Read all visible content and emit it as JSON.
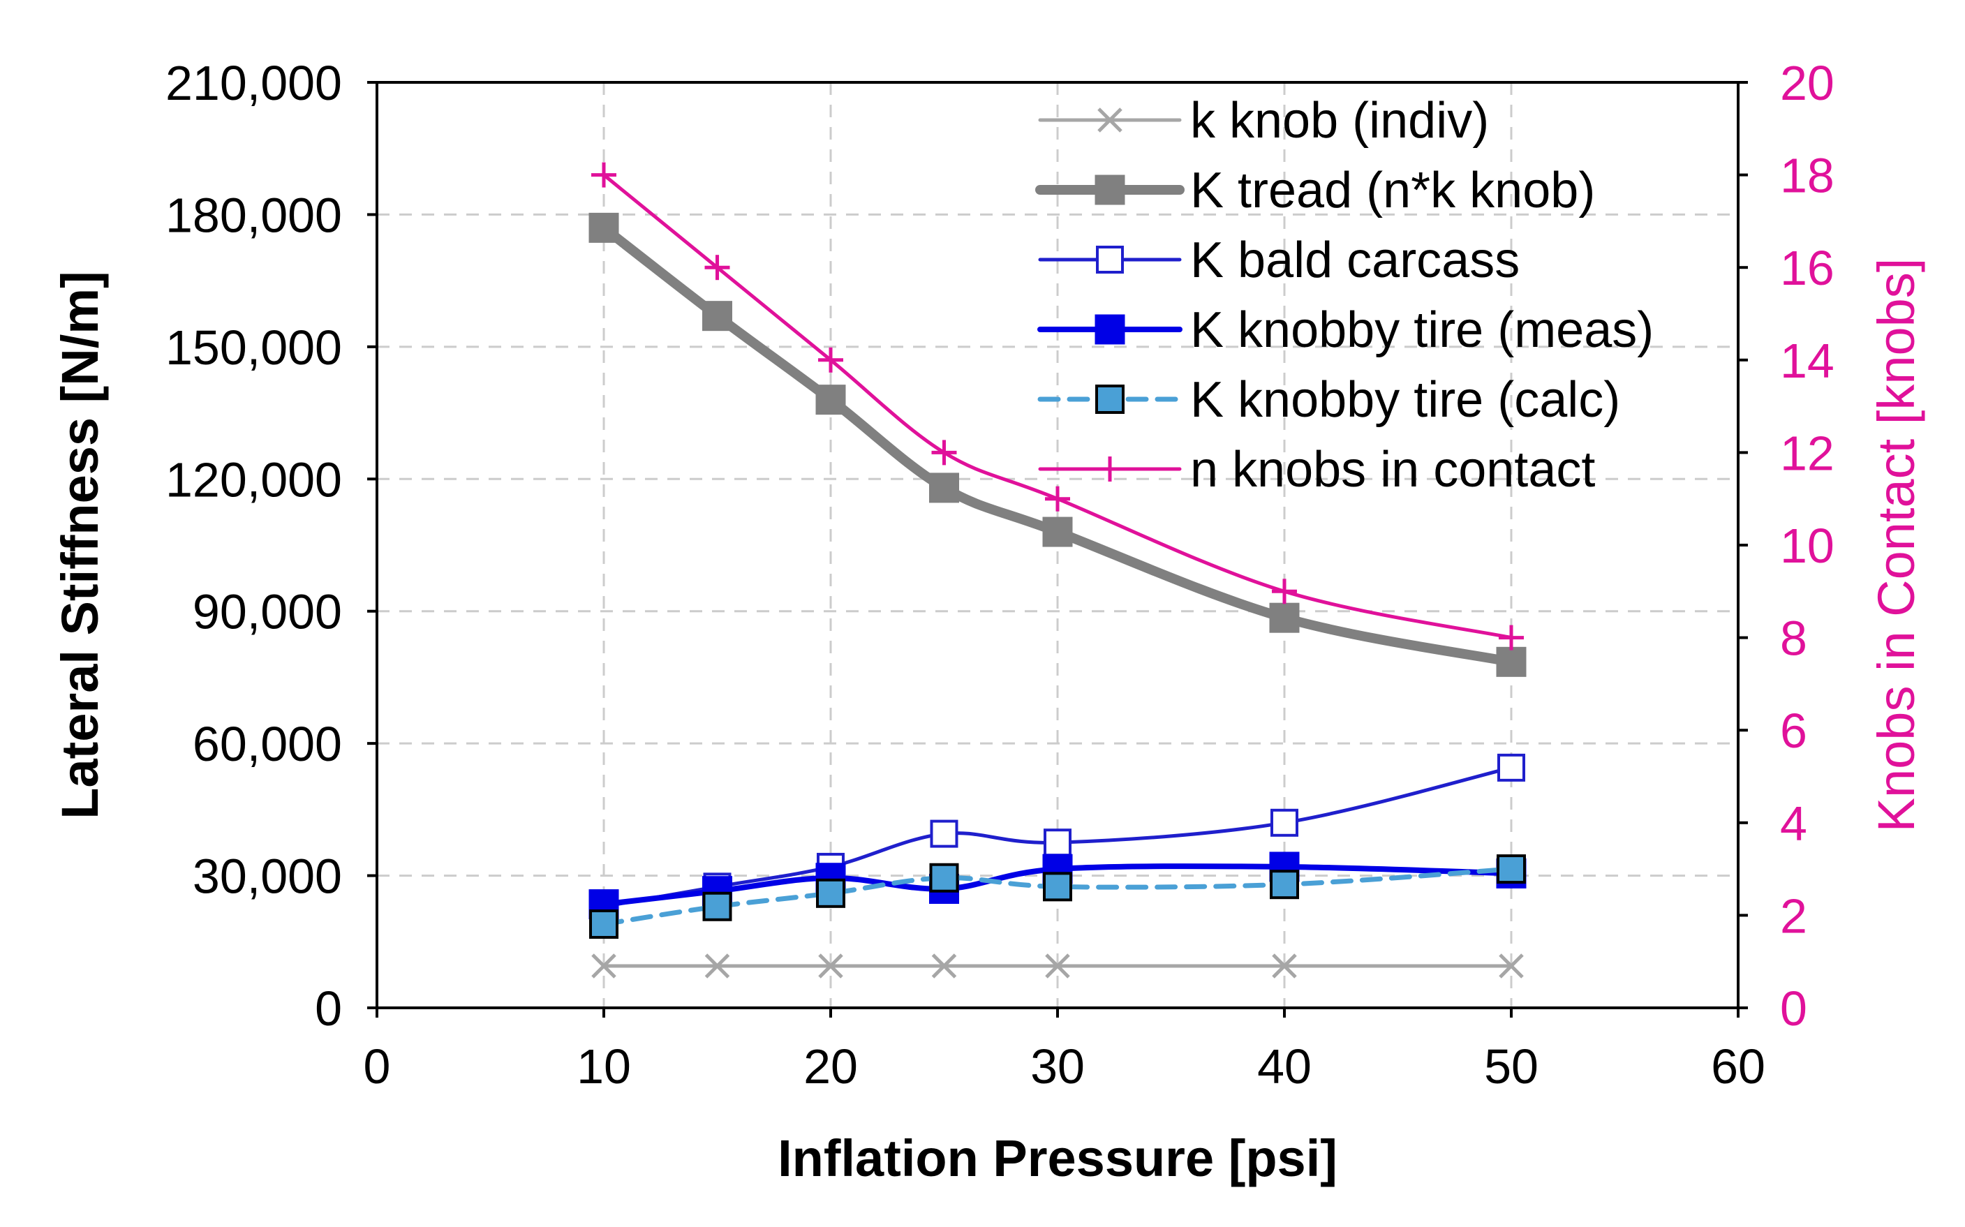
{
  "chart_data": {
    "type": "line",
    "title": "",
    "xlabel": "Inflation Pressure [psi]",
    "ylabel": "Lateral Stiffness [N/m]",
    "y2label": "Knobs in Contact [knobs]",
    "xlim": [
      0,
      60
    ],
    "ylim": [
      0,
      210000
    ],
    "y2lim": [
      0,
      20
    ],
    "xticks": [
      0,
      10,
      20,
      30,
      40,
      50,
      60
    ],
    "xtick_labels": [
      "0",
      "10",
      "20",
      "30",
      "40",
      "50",
      "60"
    ],
    "yticks": [
      0,
      30000,
      60000,
      90000,
      120000,
      150000,
      180000,
      210000
    ],
    "ytick_labels": [
      "0",
      "30,000",
      "60,000",
      "90,000",
      "120,000",
      "150,000",
      "180,000",
      "210,000"
    ],
    "y2ticks": [
      0,
      2,
      4,
      6,
      8,
      10,
      12,
      14,
      16,
      18,
      20
    ],
    "y2tick_labels": [
      "0",
      "2",
      "4",
      "6",
      "8",
      "10",
      "12",
      "14",
      "16",
      "18",
      "20"
    ],
    "grid": true,
    "legend_position": "top-right",
    "x": [
      10,
      15,
      20,
      25,
      30,
      40,
      50
    ],
    "series": [
      {
        "name": "k knob (indiv)",
        "axis": "left",
        "color": "#a6a6a6",
        "marker": "x",
        "dashed": false,
        "values": [
          9500,
          9500,
          9500,
          9500,
          9500,
          9500,
          9500
        ]
      },
      {
        "name": "K tread (n*k knob)",
        "axis": "left",
        "color": "#808080",
        "marker": "square-filled",
        "dashed": false,
        "values": [
          177000,
          157000,
          138000,
          118000,
          108000,
          88500,
          78500
        ]
      },
      {
        "name": "K bald carcass",
        "axis": "left",
        "color": "#1f1fcc",
        "marker": "square-open",
        "dashed": false,
        "values": [
          23000,
          27500,
          32000,
          39500,
          37500,
          42000,
          54500
        ]
      },
      {
        "name": "K knobby tire (meas)",
        "axis": "left",
        "color": "#0000e6",
        "marker": "square-filled",
        "dashed": false,
        "values": [
          23500,
          26500,
          29500,
          27000,
          31500,
          32000,
          30500
        ]
      },
      {
        "name": "K knobby tire (calc)",
        "axis": "left",
        "color": "#4aa0d6",
        "marker": "square-filled-light",
        "dashed": true,
        "values": [
          19000,
          23000,
          26000,
          29500,
          27500,
          28000,
          31500
        ]
      },
      {
        "name": "n knobs in contact",
        "axis": "right",
        "color": "#e0119a",
        "marker": "plus",
        "dashed": false,
        "values": [
          18,
          16,
          14,
          12,
          11,
          9,
          8
        ]
      }
    ],
    "colors": {
      "right_axis": "#e0119a",
      "grid": "#cccccc",
      "axis": "#000000"
    }
  }
}
